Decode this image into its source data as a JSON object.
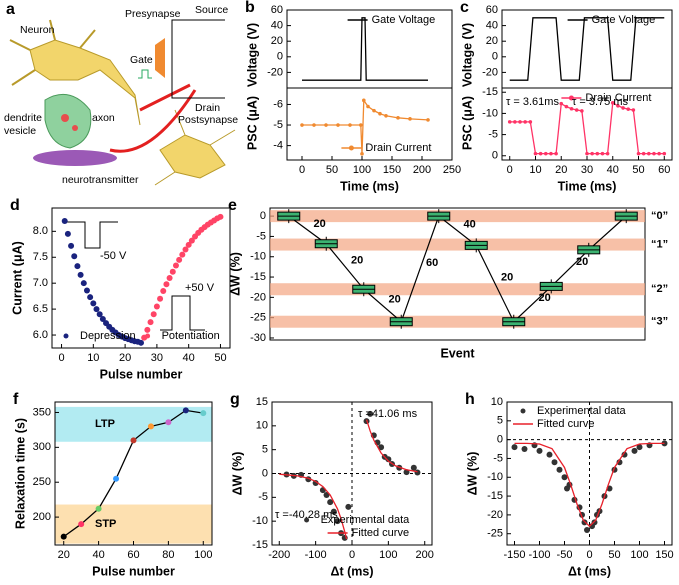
{
  "diagram": {
    "panel": "a",
    "labels": [
      "Neuron",
      "Presynapse",
      "Source",
      "Gate",
      "Drain",
      "Postsynapse",
      "dendrite",
      "vesicle",
      "axon",
      "neurotransmitter"
    ]
  },
  "chart_data": [
    {
      "type": "line",
      "panel": "b",
      "ylabel": "Voltage (V)",
      "xlim": [
        -25,
        250
      ],
      "ylim": [
        -40,
        60
      ],
      "yticks": [
        -20,
        0,
        20,
        40,
        60
      ],
      "legend": "upper right",
      "series": [
        {
          "name": "Gate Voltage",
          "color": "#000000",
          "mode": "lines",
          "x": [
            0,
            98,
            100,
            105,
            107,
            210
          ],
          "values": [
            -30,
            -30,
            50,
            50,
            -30,
            -30
          ]
        }
      ]
    },
    {
      "type": "line",
      "ylabel": "PSC (μA)",
      "xlabel": "Time (ms)",
      "xlim": [
        -25,
        250
      ],
      "ylim": [
        -3.3,
        -6.8
      ],
      "yticks": [
        -6,
        -5,
        -4
      ],
      "xticks": [
        0,
        50,
        100,
        150,
        200,
        250
      ],
      "legend": "lower right",
      "series": [
        {
          "name": "Drain Current",
          "color": "#f08a30",
          "mode": "lines+markers",
          "x": [
            0,
            20,
            40,
            60,
            80,
            98,
            100,
            103,
            110,
            120,
            130,
            140,
            160,
            180,
            210
          ],
          "values": [
            -5,
            -5,
            -5,
            -5,
            -5,
            -5,
            -3.6,
            -6.2,
            -5.9,
            -5.7,
            -5.55,
            -5.45,
            -5.35,
            -5.3,
            -5.25
          ]
        }
      ]
    },
    {
      "type": "line",
      "panel": "c",
      "ylabel": "Voltage (V)",
      "xlim": [
        -3,
        63
      ],
      "ylim": [
        -40,
        60
      ],
      "yticks": [
        -20,
        0,
        20,
        40,
        60
      ],
      "legend": "upper right",
      "series": [
        {
          "name": "Gate Voltage",
          "color": "#000000",
          "mode": "lines",
          "x": [
            0,
            7,
            9,
            18,
            20,
            27,
            29,
            38,
            40,
            47,
            49,
            60
          ],
          "values": [
            -30,
            -30,
            50,
            50,
            -30,
            -30,
            50,
            50,
            -30,
            -30,
            50,
            50
          ]
        }
      ]
    },
    {
      "type": "line",
      "ylabel": "PSC (μA)",
      "xlabel": "Time (ms)",
      "xlim": [
        -3,
        63
      ],
      "ylim": [
        1,
        -16
      ],
      "yticks": [
        0,
        -5,
        -10,
        -15
      ],
      "xticks": [
        0,
        10,
        20,
        30,
        40,
        50,
        60
      ],
      "legend": "upper right",
      "annotations": [
        "τ = 3.61ms",
        "τ = 3.75 ms"
      ],
      "series": [
        {
          "name": "Drain Current",
          "color": "#ff3366",
          "mode": "lines+markers",
          "x": [
            0,
            2,
            4,
            6,
            8,
            10,
            12,
            14,
            16,
            18,
            20,
            22,
            24,
            26,
            28,
            30,
            32,
            34,
            36,
            38,
            40,
            42,
            44,
            46,
            48,
            50,
            52,
            54,
            56,
            58,
            60
          ],
          "values": [
            -8,
            -8,
            -8,
            -8,
            -8,
            -0.5,
            -0.5,
            -0.5,
            -0.5,
            -0.5,
            -12.3,
            -11.6,
            -11.1,
            -10.8,
            -10.6,
            -0.5,
            -0.5,
            -0.5,
            -0.5,
            -0.5,
            -12.5,
            -11.8,
            -11.3,
            -11,
            -10.8,
            -0.5,
            -0.5,
            -0.5,
            -0.5,
            -0.5,
            -0.5
          ]
        }
      ]
    },
    {
      "type": "scatter",
      "panel": "d",
      "ylabel": "Current (μA)",
      "xlabel": "Pulse number",
      "xlim": [
        -3,
        53
      ],
      "ylim": [
        5.75,
        8.45
      ],
      "xticks": [
        0,
        10,
        20,
        30,
        40,
        50
      ],
      "yticks": [
        {
          "value": 6,
          "label": "6.0"
        },
        6.5,
        {
          "value": 7,
          "label": "7.0"
        },
        7.5,
        {
          "value": 8,
          "label": "8.0"
        }
      ],
      "legend": "bottom",
      "annotations": [
        "-50 V",
        "+50 V"
      ],
      "series": [
        {
          "name": "Depression",
          "color": "#1a237e",
          "mode": "markers",
          "x": [
            1,
            2,
            3,
            4,
            5,
            6,
            7,
            8,
            9,
            10,
            11,
            12,
            13,
            14,
            15,
            16,
            17,
            18,
            19,
            20,
            21,
            22,
            23,
            24,
            25
          ],
          "values": [
            8.2,
            7.95,
            7.72,
            7.52,
            7.33,
            7.16,
            7.0,
            6.86,
            6.73,
            6.61,
            6.5,
            6.4,
            6.31,
            6.23,
            6.16,
            6.1,
            6.05,
            6.0,
            5.97,
            5.94,
            5.92,
            5.9,
            5.88,
            5.87,
            5.85
          ]
        },
        {
          "name": "Potentiation",
          "color": "#ff4466",
          "mode": "markers",
          "x": [
            26,
            27,
            28,
            29,
            30,
            31,
            32,
            33,
            34,
            35,
            36,
            37,
            38,
            39,
            40,
            41,
            42,
            43,
            44,
            45,
            46,
            47,
            48,
            49,
            50
          ],
          "values": [
            5.95,
            6.1,
            6.25,
            6.4,
            6.55,
            6.7,
            6.85,
            6.98,
            7.1,
            7.22,
            7.34,
            7.45,
            7.55,
            7.65,
            7.74,
            7.82,
            7.9,
            7.97,
            8.03,
            8.08,
            8.13,
            8.17,
            8.21,
            8.25,
            8.28
          ]
        }
      ]
    },
    {
      "type": "box",
      "panel": "e",
      "ylabel": "ΔW (%)",
      "xlabel": "Event",
      "ylim": [
        -30.5,
        2
      ],
      "yticks": [
        0,
        -5,
        -10,
        -15,
        -20,
        -25,
        -30
      ],
      "values": [
        0,
        -6.8,
        -18,
        -26,
        0,
        -7.2,
        -26,
        -17.3,
        -8.3,
        0
      ],
      "color": "#3cb371",
      "band_color": "#f4a582",
      "levels": [
        0,
        -7,
        -18,
        -26
      ],
      "level_labels": [
        "“0”",
        "“1”",
        "“2”",
        "“3”"
      ],
      "edge_labels": [
        "20",
        "20",
        "20",
        "60",
        "40",
        "20",
        "20",
        "20"
      ]
    },
    {
      "type": "line",
      "panel": "f",
      "ylabel": "Relaxation time (s)",
      "xlabel": "Pulse number",
      "xlim": [
        15,
        105
      ],
      "ylim": [
        160,
        365
      ],
      "xticks": [
        20,
        40,
        60,
        80,
        100
      ],
      "yticks": [
        200,
        250,
        300,
        350
      ],
      "bands": [
        {
          "label": "LTP",
          "range": [
            308,
            358
          ],
          "color": "#b2ebf2"
        },
        {
          "label": "STP",
          "range": [
            162,
            218
          ],
          "color": "#fde0b0"
        }
      ],
      "series": [
        {
          "color": "#000000",
          "mode": "lines+markers",
          "x": [
            20,
            30,
            40,
            50,
            60,
            70,
            80,
            90,
            100
          ],
          "values": [
            172,
            190,
            212,
            255,
            310,
            330,
            336,
            353,
            349
          ],
          "point_colors": [
            "#000000",
            "#ff3366",
            "#66cc66",
            "#3399ff",
            "#c0392b",
            "#ff9933",
            "#cc66cc",
            "#1a237e",
            "#66cccc"
          ]
        }
      ]
    },
    {
      "type": "scatter",
      "panel": "g",
      "ylabel": "ΔW (%)",
      "xlabel": "Δt (ms)",
      "xlim": [
        -220,
        220
      ],
      "ylim": [
        -15,
        15
      ],
      "xticks": [
        -200,
        -100,
        0,
        100,
        200
      ],
      "yticks": [
        -15,
        -10,
        -5,
        0,
        5,
        10,
        15
      ],
      "ref_lines": {
        "x": 0,
        "y": 0
      },
      "legend": "lower right",
      "annotations": [
        "τ =41.06 ms",
        "τ =-40.28 ms"
      ],
      "annotation_color": "#e8202a",
      "series": [
        {
          "name": "Experimental data",
          "color": "#333333",
          "mode": "markers",
          "x": [
            -180,
            -160,
            -140,
            -120,
            -100,
            -80,
            -70,
            -60,
            -50,
            -40,
            -30,
            -20,
            -10,
            40,
            50,
            60,
            70,
            80,
            90,
            100,
            110,
            130,
            150,
            170,
            180
          ],
          "values": [
            -0.2,
            -0.5,
            -0.3,
            -1.2,
            -2,
            -3.5,
            -4.5,
            -6,
            -8,
            -10,
            -12.5,
            -13.5,
            -7,
            11,
            12.5,
            8,
            6.5,
            5.5,
            3.5,
            3,
            2,
            1.2,
            0.3,
            1.2,
            0.2
          ]
        },
        {
          "name": "Fitted curve",
          "color": "#e8202a",
          "mode": "lines",
          "x": [
            -200,
            -150,
            -120,
            -100,
            -80,
            -60,
            -40,
            -30,
            -20,
            -15,
            0,
            40,
            50,
            60,
            80,
            100,
            120,
            150,
            180
          ],
          "values": [
            -0.14,
            -0.49,
            -1.0,
            -1.67,
            -2.74,
            -4.51,
            -7.41,
            -9.5,
            -12.2,
            -13.75,
            null,
            11.3,
            8.9,
            7.0,
            4.3,
            2.6,
            1.6,
            0.78,
            0.37
          ]
        }
      ]
    },
    {
      "type": "scatter",
      "panel": "h",
      "ylabel": "ΔW (%)",
      "xlabel": "Δt (ms)",
      "xlim": [
        -165,
        165
      ],
      "ylim": [
        -28,
        10
      ],
      "xticks": [
        -150,
        -100,
        -50,
        0,
        50,
        100,
        150
      ],
      "yticks": [
        -25,
        -20,
        -15,
        -10,
        -5,
        0,
        5,
        10
      ],
      "ref_lines": {
        "x": 0,
        "y": 0
      },
      "legend": "upper left",
      "series": [
        {
          "name": "Experimental data",
          "color": "#333333",
          "mode": "markers",
          "x": [
            -150,
            -130,
            -110,
            -100,
            -80,
            -70,
            -60,
            -50,
            -45,
            -40,
            -30,
            -20,
            -15,
            -10,
            -5,
            5,
            10,
            15,
            20,
            30,
            40,
            50,
            60,
            70,
            90,
            100,
            120,
            150
          ],
          "values": [
            -2,
            -2.5,
            -1.5,
            -3,
            -4,
            -6,
            -8,
            -10,
            -13,
            -12,
            -16,
            -18,
            -20,
            -22,
            -24,
            -23,
            -22,
            -20,
            -19,
            -15,
            -13,
            -8,
            -6,
            -4,
            -3,
            -2,
            -1.5,
            -1
          ]
        },
        {
          "name": "Fitted curve",
          "color": "#e8202a",
          "mode": "lines",
          "x": [
            -150,
            -125,
            -100,
            -75,
            -50,
            -37.5,
            -25,
            -12.5,
            0,
            12.5,
            25,
            37.5,
            50,
            75,
            100,
            125,
            150
          ],
          "values": [
            -1,
            -1,
            -1.16,
            -2.4,
            -7.4,
            -12,
            -17.1,
            -21.4,
            -23,
            -21.4,
            -17.1,
            -12,
            -7.4,
            -2.4,
            -1.16,
            -1,
            -1
          ]
        }
      ]
    }
  ]
}
